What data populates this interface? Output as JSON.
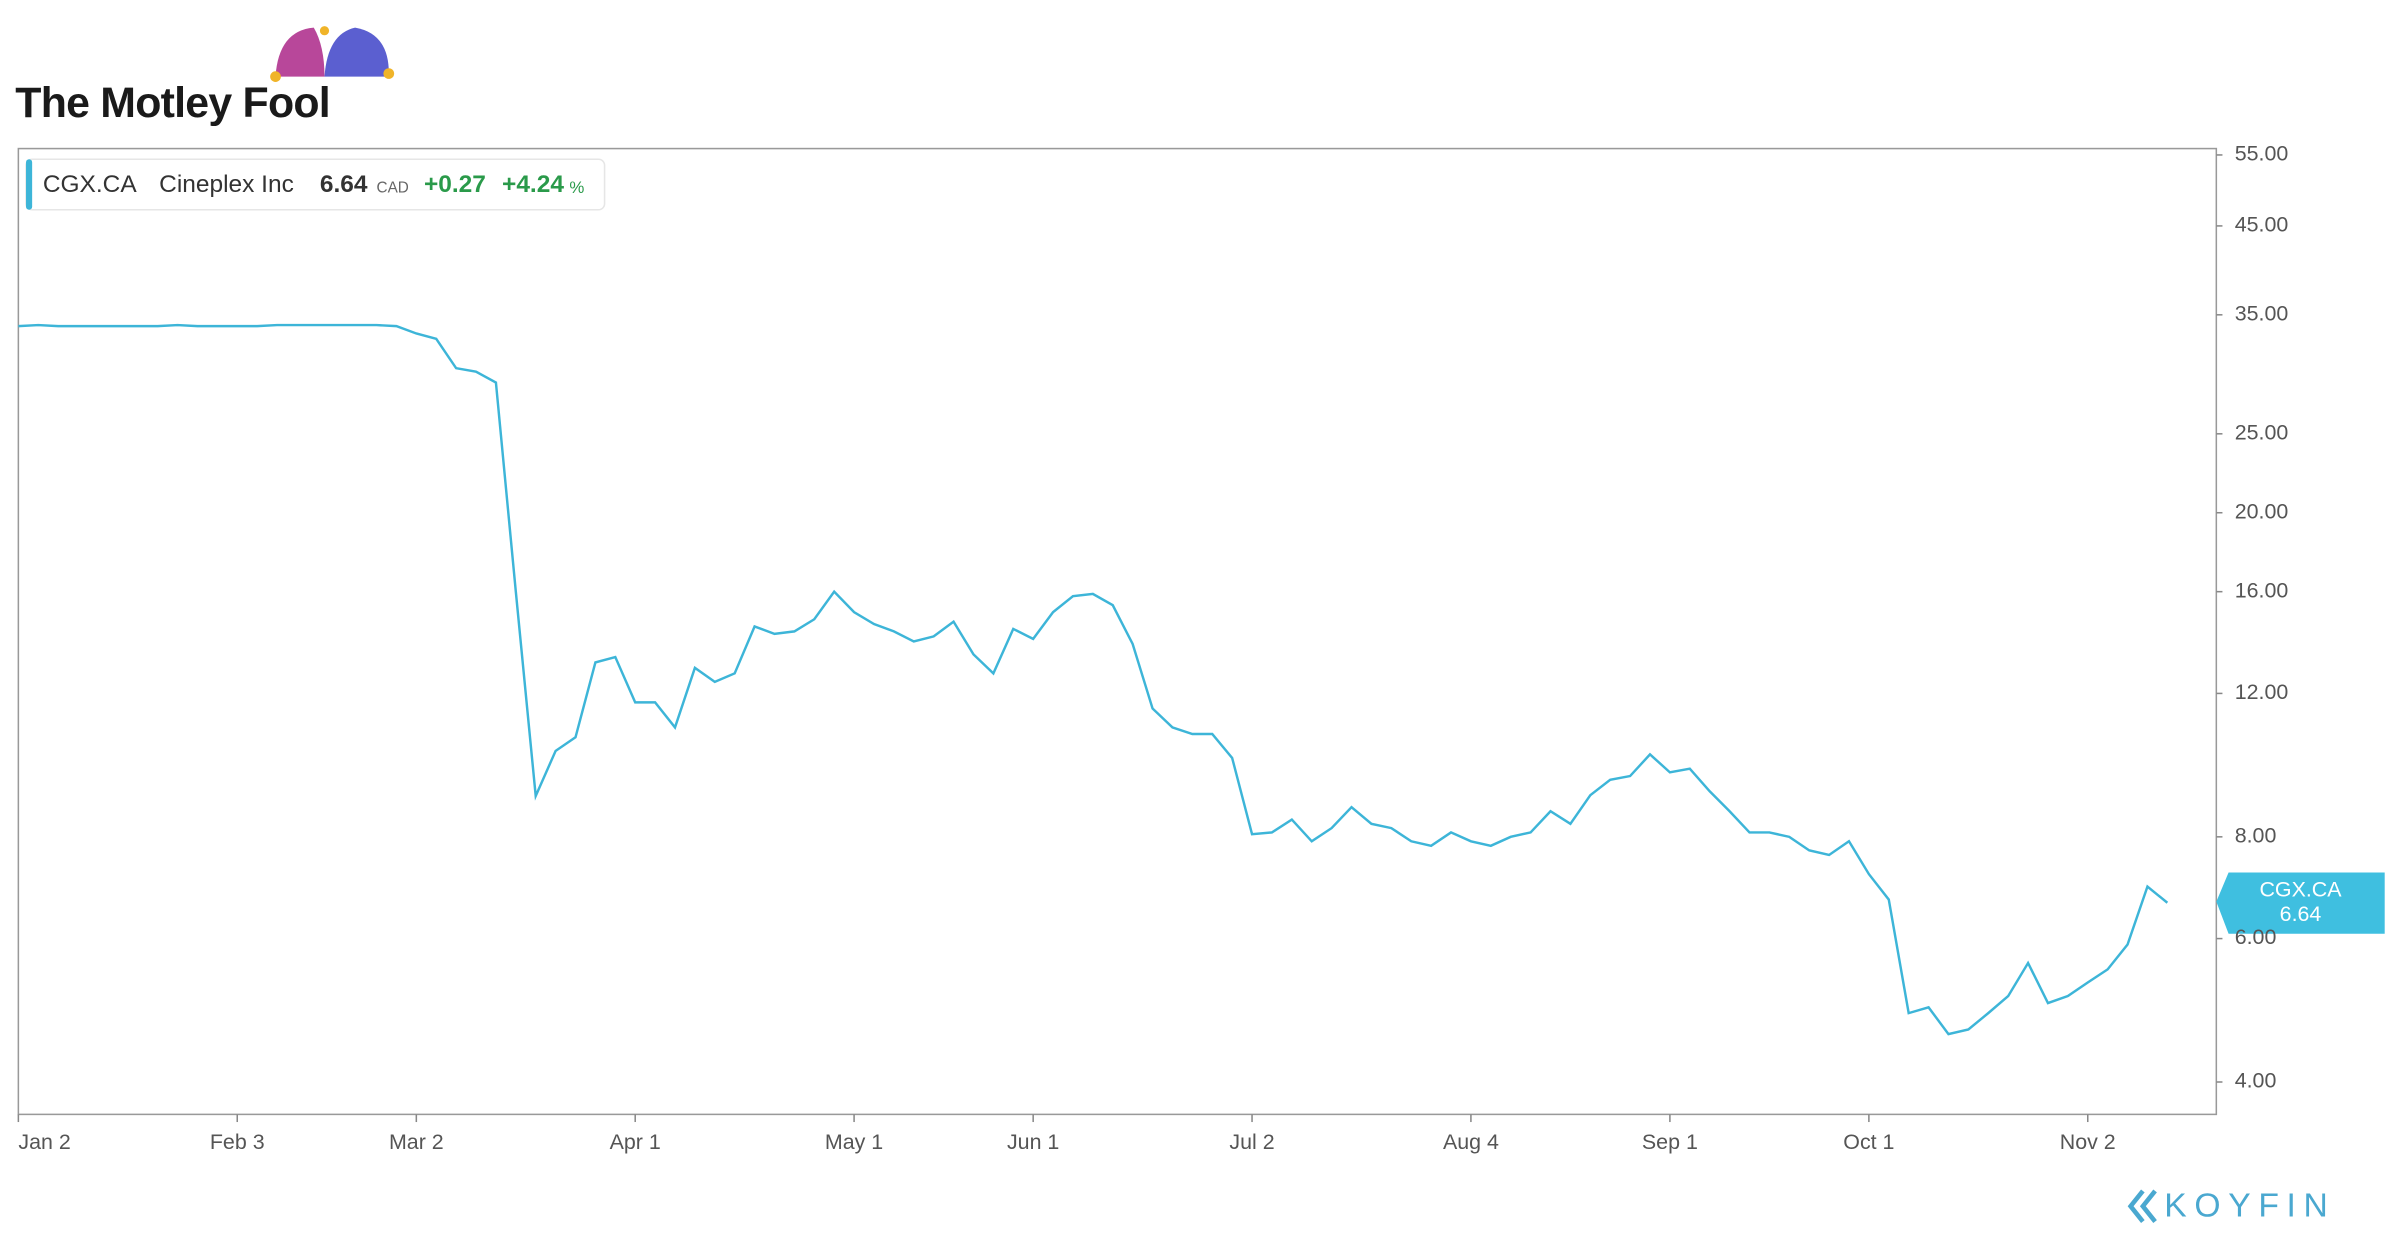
{
  "header": {
    "brand": "The Motley Fool",
    "footer_brand": "KOYFIN"
  },
  "chart_data": {
    "type": "line",
    "ticker": "CGX.CA",
    "name": "Cineplex Inc",
    "price": "6.64",
    "currency": "CAD",
    "change": "+0.27",
    "change_pct": "+4.24",
    "pct_sign": "%",
    "log_scale": true,
    "ylim": [
      3.65,
      56
    ],
    "yticks": [
      {
        "value": 4,
        "label": "4.00"
      },
      {
        "value": 6,
        "label": "6.00"
      },
      {
        "value": 8,
        "label": "8.00"
      },
      {
        "value": 12,
        "label": "12.00"
      },
      {
        "value": 16,
        "label": "16.00"
      },
      {
        "value": 20,
        "label": "20.00"
      },
      {
        "value": 25,
        "label": "25.00"
      },
      {
        "value": 35,
        "label": "35.00"
      },
      {
        "value": 45,
        "label": "45.00"
      },
      {
        "value": 55,
        "label": "55.00"
      }
    ],
    "categories": [
      "Jan 2",
      null,
      null,
      null,
      null,
      null,
      null,
      null,
      null,
      null,
      null,
      "Feb 3",
      null,
      null,
      null,
      null,
      null,
      null,
      null,
      null,
      "Mar 2",
      null,
      null,
      null,
      null,
      null,
      null,
      null,
      null,
      null,
      null,
      "Apr 1",
      null,
      null,
      null,
      null,
      null,
      null,
      null,
      null,
      null,
      null,
      "May 1",
      null,
      null,
      null,
      null,
      null,
      null,
      null,
      null,
      "Jun 1",
      null,
      null,
      null,
      null,
      null,
      null,
      null,
      null,
      null,
      null,
      "Jul 2",
      null,
      null,
      null,
      null,
      null,
      null,
      null,
      null,
      null,
      null,
      "Aug 4",
      null,
      null,
      null,
      null,
      null,
      null,
      null,
      null,
      null,
      "Sep 1",
      null,
      null,
      null,
      null,
      null,
      null,
      null,
      null,
      null,
      "Oct 1",
      null,
      null,
      null,
      null,
      null,
      null,
      null,
      null,
      null,
      null,
      "Nov 2",
      null,
      null,
      null,
      null
    ],
    "series": [
      {
        "name": "CGX.CA",
        "color": "#3db5d8",
        "values": [
          33.9,
          34.0,
          33.9,
          33.9,
          33.9,
          33.9,
          33.9,
          33.9,
          34.0,
          33.9,
          33.9,
          33.9,
          33.9,
          34.0,
          34.0,
          34.0,
          34.0,
          34.0,
          34.0,
          33.9,
          33.2,
          32.7,
          30.1,
          29.8,
          28.9,
          16.0,
          8.98,
          10.2,
          10.6,
          13.1,
          13.3,
          11.7,
          11.7,
          10.9,
          12.9,
          12.4,
          12.7,
          14.5,
          14.2,
          14.3,
          14.8,
          16.0,
          15.1,
          14.6,
          14.3,
          13.9,
          14.1,
          14.7,
          13.4,
          12.7,
          14.4,
          14.0,
          15.1,
          15.8,
          15.9,
          15.4,
          13.8,
          11.5,
          10.9,
          10.7,
          10.7,
          10.0,
          8.06,
          8.1,
          8.4,
          7.9,
          8.2,
          8.7,
          8.3,
          8.2,
          7.9,
          7.8,
          8.1,
          7.9,
          7.8,
          8.0,
          8.1,
          8.6,
          8.3,
          9.0,
          9.4,
          9.5,
          10.1,
          9.6,
          9.7,
          9.1,
          8.6,
          8.1,
          8.1,
          8.0,
          7.7,
          7.6,
          7.9,
          7.2,
          6.7,
          4.86,
          4.94,
          4.58,
          4.64,
          4.86,
          5.1,
          5.6,
          5.0,
          5.1,
          5.3,
          5.5,
          5.9,
          6.95,
          6.64
        ]
      }
    ]
  }
}
